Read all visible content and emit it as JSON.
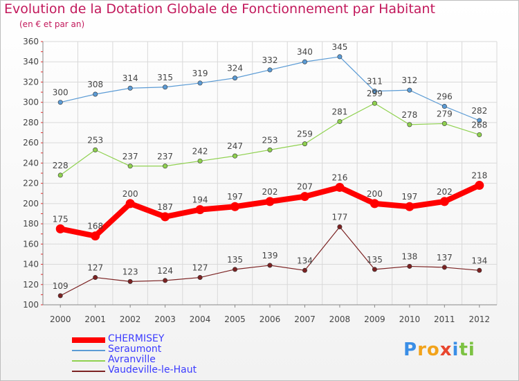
{
  "title": "Evolution de la Dotation Globale de Fonctionnement par Habitant",
  "subtitle": "(en € et par an)",
  "logo": {
    "letters": [
      {
        "ch": "P",
        "color": "#3a8ee6"
      },
      {
        "ch": "r",
        "color": "#f2a31b"
      },
      {
        "ch": "o",
        "color": "#f2a31b"
      },
      {
        "ch": "x",
        "color": "#e8462e"
      },
      {
        "ch": "i",
        "color": "#3a8ee6"
      },
      {
        "ch": "t",
        "color": "#7cc242"
      },
      {
        "ch": "i",
        "color": "#7cc242"
      }
    ]
  },
  "chart_data": {
    "type": "line",
    "title": "Evolution de la Dotation Globale de Fonctionnement par Habitant",
    "subtitle": "(en € et par an)",
    "x": [
      "2000",
      "2001",
      "2002",
      "2003",
      "2004",
      "2005",
      "2006",
      "2007",
      "2008",
      "2009",
      "2010",
      "2011",
      "2012"
    ],
    "ylim": [
      100,
      360
    ],
    "yticks": [
      100,
      120,
      140,
      160,
      180,
      200,
      220,
      240,
      260,
      280,
      300,
      320,
      340,
      360
    ],
    "grid": true,
    "legend_position": "bottom-left",
    "series": [
      {
        "name": "CHERMISEY",
        "color": "#ff0000",
        "highlight": true,
        "values": [
          175,
          168,
          200,
          187,
          194,
          197,
          202,
          207,
          216,
          200,
          197,
          202,
          218
        ]
      },
      {
        "name": "Seraumont",
        "color": "#5b9bd5",
        "highlight": false,
        "values": [
          300,
          308,
          314,
          315,
          319,
          324,
          332,
          340,
          345,
          311,
          312,
          296,
          282
        ]
      },
      {
        "name": "Avranville",
        "color": "#8fd14f",
        "highlight": false,
        "values": [
          228,
          253,
          237,
          237,
          242,
          247,
          253,
          259,
          281,
          299,
          278,
          279,
          268
        ]
      },
      {
        "name": "Vaudeville-le-Haut",
        "color": "#7b2222",
        "highlight": false,
        "values": [
          109,
          127,
          123,
          124,
          127,
          135,
          139,
          134,
          177,
          135,
          138,
          137,
          134
        ]
      }
    ]
  }
}
